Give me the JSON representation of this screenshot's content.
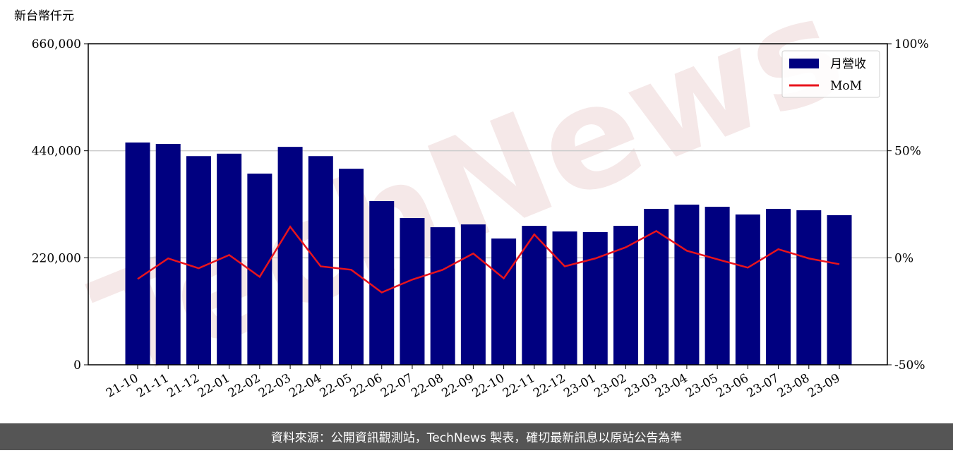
{
  "chart_data": {
    "type": "bar_line",
    "y_label": "新台幣仟元",
    "watermark": "TechNews",
    "footer": "資料來源：公開資訊觀測站，TechNews 製表，確切最新訊息以原站公告為準",
    "categories": [
      "21-10",
      "21-11",
      "21-12",
      "22-01",
      "22-02",
      "22-03",
      "22-04",
      "22-05",
      "22-06",
      "22-07",
      "22-08",
      "22-09",
      "22-10",
      "22-11",
      "22-12",
      "23-01",
      "23-02",
      "23-03",
      "23-04",
      "23-05",
      "23-06",
      "23-07",
      "23-08",
      "23-09"
    ],
    "series": [
      {
        "name": "月營收",
        "type": "bar",
        "color": "#000080",
        "axis": "y",
        "values": [
          457000,
          454000,
          429000,
          434000,
          393000,
          448000,
          429000,
          403000,
          336500,
          301700,
          282800,
          288600,
          259600,
          285700,
          274100,
          272700,
          285700,
          320600,
          329300,
          324900,
          309000,
          320600,
          317700,
          307500
        ]
      },
      {
        "name": "MoM",
        "type": "line",
        "color": "#e8141c",
        "axis": "y2",
        "values": [
          -9.9,
          -0.3,
          -4.9,
          1.3,
          -8.9,
          14.5,
          -4.0,
          -5.6,
          -16.2,
          -10.2,
          -5.6,
          2.0,
          -9.6,
          10.9,
          -4.0,
          -0.3,
          4.9,
          12.5,
          3.3,
          -0.7,
          -4.6,
          4.0,
          -0.3,
          -3.0
        ]
      }
    ],
    "ylim": [
      0,
      660000
    ],
    "yticks": [
      0,
      {
        "value": 220000,
        "label": "220,000"
      },
      {
        "value": 440000,
        "label": "440,000"
      },
      {
        "value": 660000,
        "label": "660,000"
      }
    ],
    "y2lim": [
      -50,
      100
    ],
    "y2ticks": [
      {
        "value": -50,
        "label": "-50%"
      },
      {
        "value": 0,
        "label": "0%"
      },
      {
        "value": 50,
        "label": "50%"
      },
      {
        "value": 100,
        "label": "100%"
      }
    ],
    "grid": true,
    "legend": "upper right"
  }
}
